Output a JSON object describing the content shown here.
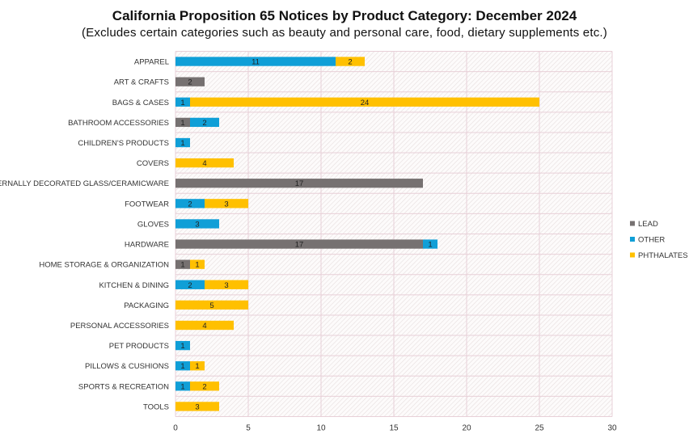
{
  "chart_data": {
    "type": "bar",
    "orientation": "horizontal",
    "stacked": true,
    "title": "California Proposition 65 Notices by Product Category: December 2024",
    "subtitle": "(Excludes certain categories such as beauty and personal care, food, dietary supplements etc.)",
    "xlim": [
      0,
      30
    ],
    "xticks": [
      0,
      5,
      10,
      15,
      20,
      25,
      30
    ],
    "grid": true,
    "legend_position": "right",
    "categories": [
      "APPAREL",
      "ART & CRAFTS",
      "BAGS & CASES",
      "BATHROOM ACCESSORIES",
      "CHILDREN'S PRODUCTS",
      "COVERS",
      "EXTERNALLY DECORATED GLASS/CERAMICWARE",
      "FOOTWEAR",
      "GLOVES",
      "HARDWARE",
      "HOME STORAGE & ORGANIZATION",
      "KITCHEN & DINING",
      "PACKAGING",
      "PERSONAL ACCESSORIES",
      "PET PRODUCTS",
      "PILLOWS & CUSHIONS",
      "SPORTS & RECREATION",
      "TOOLS"
    ],
    "series": [
      {
        "name": "LEAD",
        "color": "#767171",
        "values": [
          0,
          2,
          0,
          1,
          0,
          0,
          17,
          0,
          0,
          17,
          1,
          0,
          0,
          0,
          0,
          0,
          0,
          0
        ]
      },
      {
        "name": "OTHER",
        "color": "#109FD7",
        "values": [
          11,
          0,
          1,
          2,
          1,
          0,
          0,
          2,
          3,
          1,
          0,
          2,
          0,
          0,
          1,
          1,
          1,
          0
        ]
      },
      {
        "name": "PHTHALATES",
        "color": "#FFC000",
        "values": [
          2,
          0,
          24,
          0,
          0,
          4,
          0,
          3,
          0,
          0,
          1,
          3,
          5,
          4,
          0,
          1,
          2,
          3
        ]
      }
    ]
  }
}
